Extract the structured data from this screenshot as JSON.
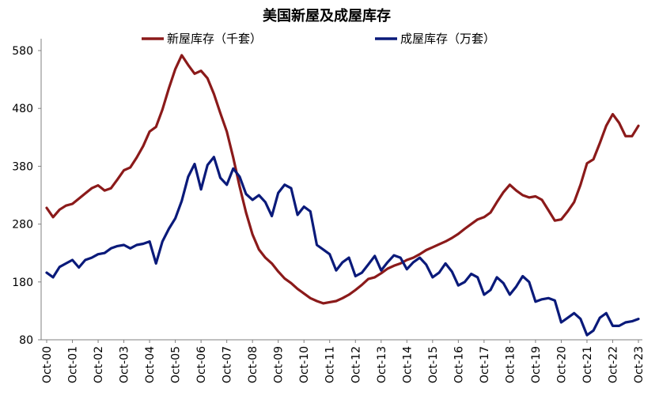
{
  "chart_data": {
    "type": "line",
    "title": "美国新屋及成屋库存",
    "xlabel": "",
    "ylabel": "",
    "ylim": [
      80,
      600
    ],
    "yticks": [
      80,
      180,
      280,
      380,
      480,
      580
    ],
    "x_tick_labels": [
      "Oct-00",
      "Oct-01",
      "Oct-02",
      "Oct-03",
      "Oct-04",
      "Oct-05",
      "Oct-06",
      "Oct-07",
      "Oct-08",
      "Oct-09",
      "Oct-10",
      "Oct-11",
      "Oct-12",
      "Oct-13",
      "Oct-14",
      "Oct-15",
      "Oct-16",
      "Oct-17",
      "Oct-18",
      "Oct-19",
      "Oct-20",
      "Oct-21",
      "Oct-22",
      "Oct-23"
    ],
    "grid": false,
    "legend_position": "top",
    "series": [
      {
        "name": "新屋库存（千套）",
        "color": "#8B1A1A",
        "points": [
          [
            "2000-10",
            308
          ],
          [
            "2001-01",
            292
          ],
          [
            "2001-04",
            305
          ],
          [
            "2001-07",
            312
          ],
          [
            "2001-10",
            315
          ],
          [
            "2002-01",
            324
          ],
          [
            "2002-04",
            333
          ],
          [
            "2002-07",
            342
          ],
          [
            "2002-10",
            347
          ],
          [
            "2003-01",
            338
          ],
          [
            "2003-04",
            342
          ],
          [
            "2003-07",
            357
          ],
          [
            "2003-10",
            373
          ],
          [
            "2004-01",
            378
          ],
          [
            "2004-04",
            395
          ],
          [
            "2004-07",
            415
          ],
          [
            "2004-10",
            440
          ],
          [
            "2005-01",
            448
          ],
          [
            "2005-04",
            478
          ],
          [
            "2005-07",
            515
          ],
          [
            "2005-10",
            548
          ],
          [
            "2006-01",
            572
          ],
          [
            "2006-04",
            555
          ],
          [
            "2006-07",
            540
          ],
          [
            "2006-10",
            545
          ],
          [
            "2007-01",
            532
          ],
          [
            "2007-04",
            505
          ],
          [
            "2007-07",
            472
          ],
          [
            "2007-10",
            440
          ],
          [
            "2008-01",
            395
          ],
          [
            "2008-04",
            345
          ],
          [
            "2008-07",
            300
          ],
          [
            "2008-10",
            262
          ],
          [
            "2009-01",
            236
          ],
          [
            "2009-04",
            222
          ],
          [
            "2009-07",
            212
          ],
          [
            "2009-10",
            198
          ],
          [
            "2010-01",
            186
          ],
          [
            "2010-04",
            178
          ],
          [
            "2010-07",
            168
          ],
          [
            "2010-10",
            160
          ],
          [
            "2011-01",
            152
          ],
          [
            "2011-04",
            147
          ],
          [
            "2011-07",
            143
          ],
          [
            "2011-10",
            145
          ],
          [
            "2012-01",
            147
          ],
          [
            "2012-04",
            152
          ],
          [
            "2012-07",
            158
          ],
          [
            "2012-10",
            166
          ],
          [
            "2013-01",
            175
          ],
          [
            "2013-04",
            185
          ],
          [
            "2013-07",
            188
          ],
          [
            "2013-10",
            195
          ],
          [
            "2014-01",
            203
          ],
          [
            "2014-04",
            208
          ],
          [
            "2014-07",
            212
          ],
          [
            "2014-10",
            218
          ],
          [
            "2015-01",
            222
          ],
          [
            "2015-04",
            228
          ],
          [
            "2015-07",
            235
          ],
          [
            "2015-10",
            240
          ],
          [
            "2016-01",
            245
          ],
          [
            "2016-04",
            250
          ],
          [
            "2016-07",
            256
          ],
          [
            "2016-10",
            263
          ],
          [
            "2017-01",
            272
          ],
          [
            "2017-04",
            280
          ],
          [
            "2017-07",
            288
          ],
          [
            "2017-10",
            292
          ],
          [
            "2018-01",
            300
          ],
          [
            "2018-04",
            318
          ],
          [
            "2018-07",
            335
          ],
          [
            "2018-10",
            348
          ],
          [
            "2019-01",
            338
          ],
          [
            "2019-04",
            330
          ],
          [
            "2019-07",
            326
          ],
          [
            "2019-10",
            328
          ],
          [
            "2020-01",
            322
          ],
          [
            "2020-04",
            304
          ],
          [
            "2020-07",
            286
          ],
          [
            "2020-10",
            288
          ],
          [
            "2021-01",
            302
          ],
          [
            "2021-04",
            318
          ],
          [
            "2021-07",
            348
          ],
          [
            "2021-10",
            385
          ],
          [
            "2022-01",
            392
          ],
          [
            "2022-04",
            420
          ],
          [
            "2022-07",
            450
          ],
          [
            "2022-10",
            470
          ],
          [
            "2023-01",
            455
          ],
          [
            "2023-04",
            432
          ],
          [
            "2023-07",
            432
          ],
          [
            "2023-10",
            450
          ]
        ]
      },
      {
        "name": "成屋库存（万套）",
        "color": "#0A1A7A",
        "points": [
          [
            "2000-10",
            196
          ],
          [
            "2001-01",
            188
          ],
          [
            "2001-04",
            206
          ],
          [
            "2001-07",
            212
          ],
          [
            "2001-10",
            218
          ],
          [
            "2002-01",
            205
          ],
          [
            "2002-04",
            218
          ],
          [
            "2002-07",
            222
          ],
          [
            "2002-10",
            228
          ],
          [
            "2003-01",
            230
          ],
          [
            "2003-04",
            238
          ],
          [
            "2003-07",
            242
          ],
          [
            "2003-10",
            244
          ],
          [
            "2004-01",
            238
          ],
          [
            "2004-04",
            244
          ],
          [
            "2004-07",
            246
          ],
          [
            "2004-10",
            250
          ],
          [
            "2005-01",
            212
          ],
          [
            "2005-04",
            250
          ],
          [
            "2005-07",
            272
          ],
          [
            "2005-10",
            290
          ],
          [
            "2006-01",
            320
          ],
          [
            "2006-04",
            362
          ],
          [
            "2006-07",
            384
          ],
          [
            "2006-10",
            340
          ],
          [
            "2007-01",
            382
          ],
          [
            "2007-04",
            396
          ],
          [
            "2007-07",
            360
          ],
          [
            "2007-10",
            348
          ],
          [
            "2008-01",
            376
          ],
          [
            "2008-04",
            362
          ],
          [
            "2008-07",
            332
          ],
          [
            "2008-10",
            322
          ],
          [
            "2009-01",
            330
          ],
          [
            "2009-04",
            318
          ],
          [
            "2009-07",
            294
          ],
          [
            "2009-10",
            334
          ],
          [
            "2010-01",
            348
          ],
          [
            "2010-04",
            342
          ],
          [
            "2010-07",
            296
          ],
          [
            "2010-10",
            310
          ],
          [
            "2011-01",
            302
          ],
          [
            "2011-04",
            244
          ],
          [
            "2011-07",
            236
          ],
          [
            "2011-10",
            228
          ],
          [
            "2012-01",
            200
          ],
          [
            "2012-04",
            214
          ],
          [
            "2012-07",
            222
          ],
          [
            "2012-10",
            190
          ],
          [
            "2013-01",
            196
          ],
          [
            "2013-04",
            210
          ],
          [
            "2013-07",
            225
          ],
          [
            "2013-10",
            200
          ],
          [
            "2014-01",
            214
          ],
          [
            "2014-04",
            226
          ],
          [
            "2014-07",
            222
          ],
          [
            "2014-10",
            202
          ],
          [
            "2015-01",
            214
          ],
          [
            "2015-04",
            222
          ],
          [
            "2015-07",
            210
          ],
          [
            "2015-10",
            188
          ],
          [
            "2016-01",
            196
          ],
          [
            "2016-04",
            212
          ],
          [
            "2016-07",
            198
          ],
          [
            "2016-10",
            174
          ],
          [
            "2017-01",
            180
          ],
          [
            "2017-04",
            194
          ],
          [
            "2017-07",
            188
          ],
          [
            "2017-10",
            158
          ],
          [
            "2018-01",
            166
          ],
          [
            "2018-04",
            188
          ],
          [
            "2018-07",
            178
          ],
          [
            "2018-10",
            158
          ],
          [
            "2019-01",
            172
          ],
          [
            "2019-04",
            190
          ],
          [
            "2019-07",
            180
          ],
          [
            "2019-10",
            146
          ],
          [
            "2020-01",
            150
          ],
          [
            "2020-04",
            152
          ],
          [
            "2020-07",
            148
          ],
          [
            "2020-10",
            110
          ],
          [
            "2021-01",
            118
          ],
          [
            "2021-04",
            126
          ],
          [
            "2021-07",
            116
          ],
          [
            "2021-10",
            88
          ],
          [
            "2022-01",
            96
          ],
          [
            "2022-04",
            118
          ],
          [
            "2022-07",
            126
          ],
          [
            "2022-10",
            104
          ],
          [
            "2023-01",
            104
          ],
          [
            "2023-04",
            110
          ],
          [
            "2023-07",
            112
          ],
          [
            "2023-10",
            116
          ]
        ]
      }
    ]
  }
}
